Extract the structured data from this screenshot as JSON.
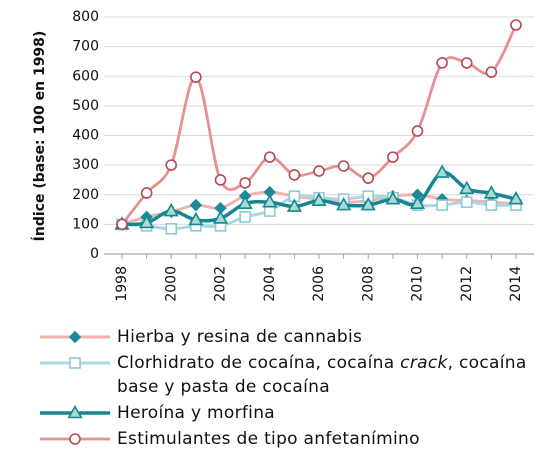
{
  "chart_data": {
    "type": "line",
    "ylabel": "Índice (base: 100 en 1998)",
    "x": [
      1998,
      1999,
      2000,
      2001,
      2002,
      2003,
      2004,
      2005,
      2006,
      2007,
      2008,
      2009,
      2010,
      2011,
      2012,
      2013,
      2014
    ],
    "x_tick_labels": [
      "1998",
      "2000",
      "2002",
      "2004",
      "2006",
      "2008",
      "2010",
      "2012",
      "2014"
    ],
    "xlim": [
      1998,
      2014
    ],
    "y_ticks": [
      0,
      100,
      200,
      300,
      400,
      500,
      600,
      700,
      800
    ],
    "ylim": [
      0,
      800
    ],
    "grid": true,
    "legend_position": "bottom",
    "series": [
      {
        "name": "Hierba y resina de cannabis",
        "marker": "diamond",
        "line_color": "#f2b3ae",
        "marker_color": "#1b8a99",
        "marker_fill": "#1b8a99",
        "values": [
          100,
          125,
          142,
          165,
          155,
          196,
          209,
          195,
          185,
          175,
          180,
          195,
          200,
          185,
          180,
          175,
          170
        ]
      },
      {
        "name": "Clorhidrato de cocaína, cocaína crack, cocaína base y pasta de cocaína",
        "italic_term": "crack",
        "marker": "square",
        "line_color": "#a9d8e1",
        "marker_color": "#8ccbd6",
        "marker_fill": "#ffffff",
        "values": [
          100,
          95,
          85,
          95,
          95,
          125,
          145,
          195,
          190,
          185,
          195,
          190,
          165,
          165,
          175,
          165,
          165
        ]
      },
      {
        "name": "Heroína y morfina",
        "marker": "triangle",
        "line_color": "#178693",
        "marker_color": "#178693",
        "marker_fill": "#a9dad3",
        "values": [
          100,
          105,
          145,
          115,
          120,
          170,
          175,
          160,
          180,
          165,
          165,
          185,
          170,
          275,
          220,
          205,
          185
        ]
      },
      {
        "name": "Estimulantes de tipo anfetanímino",
        "marker": "circle",
        "line_color": "#e8908e",
        "marker_color": "#b8475a",
        "marker_fill": "#ffffff",
        "values": [
          100,
          206,
          300,
          597,
          250,
          240,
          327,
          267,
          280,
          297,
          256,
          327,
          415,
          645,
          645,
          614,
          773
        ]
      }
    ]
  }
}
